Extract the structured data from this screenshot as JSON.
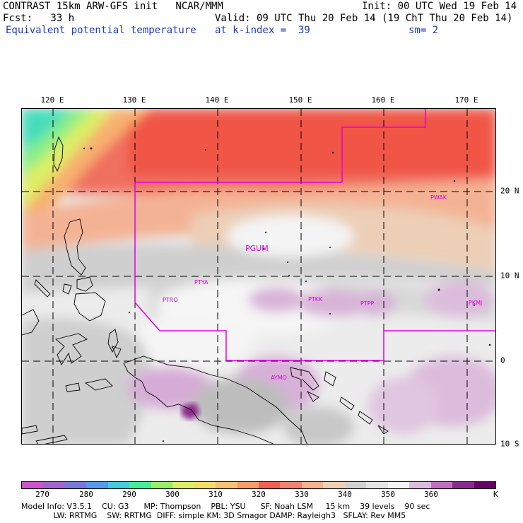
{
  "header": {
    "line1_left": "CONTRAST 15km ARW-GFS init   NCAR/MMM",
    "line1_right": "Init: 00 UTC Wed 19 Feb 14",
    "line2_left": "Fcst:   33 h",
    "line2_right": "Valid: 09 UTC Thu 20 Feb 14 (19 ChT Thu 20 Feb 14)",
    "line3_left": "Equivalent potential temperature",
    "line3_mid": "at k-index =  39",
    "line3_right": "sm= 2"
  },
  "map": {
    "longitude_labels": [
      "120 E",
      "130 E",
      "140 E",
      "150 E",
      "160 E",
      "170 E"
    ],
    "latitude_labels": [
      "20 N",
      "10 N",
      "0",
      "10 S"
    ],
    "stations": [
      "PGUM",
      "PTYA",
      "PTRO",
      "PTKK",
      "PTPP",
      "PKMJ",
      "PWAK",
      "AYMO"
    ],
    "boundary_color": "#e000e0",
    "grid_style": "dashed"
  },
  "colorbar": {
    "tick_labels": [
      "270",
      "280",
      "290",
      "300",
      "310",
      "320",
      "330",
      "340",
      "350",
      "360"
    ],
    "unit": "K",
    "colors": [
      "#cc55cc",
      "#a066cc",
      "#7777dd",
      "#5599ee",
      "#44ccdd",
      "#44ee99",
      "#99ee66",
      "#ddee66",
      "#f4dd66",
      "#f8c070",
      "#f89a66",
      "#f06050",
      "#f08070",
      "#f8b090",
      "#eecfb8",
      "#d2d2d2",
      "#e4e4e4",
      "#f5f5f5",
      "#dcbcdc",
      "#c070c0",
      "#8a2a8a",
      "#6a006a"
    ]
  },
  "footer": {
    "line1": "Model Info: V3.5.1    CU: G3      MP: Thompson    PBL: YSU      SF: Noah LSM     15 km    39 levels    90 sec",
    "line2": "             LW: RRTMG    SW: RRTMG  DIFF: simple KM: 3D Smagor DAMP: Rayleigh3   SFLAY: Rev MM5"
  }
}
